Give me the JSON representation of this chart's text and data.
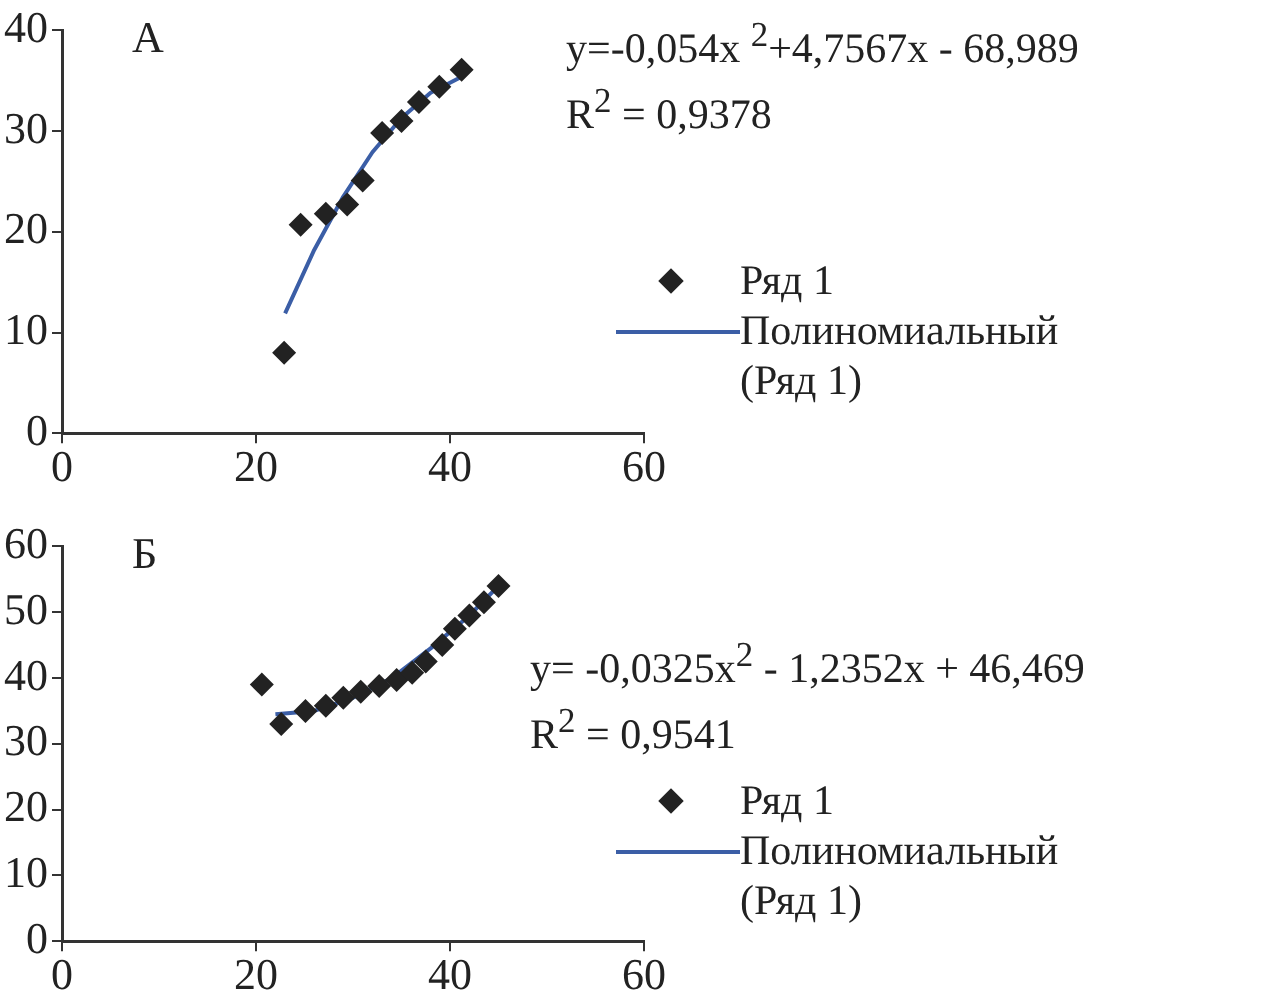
{
  "chart_data": [
    {
      "type": "scatter",
      "title": "А",
      "xlim": [
        0,
        60
      ],
      "xticks": [
        0,
        20,
        40,
        60
      ],
      "ylim": [
        0,
        40
      ],
      "yticks": [
        0,
        10,
        20,
        30,
        40
      ],
      "grid": false,
      "legend": "right",
      "annotations": [
        "y=-0,054x $^{2}$+4,7567x - 68,989",
        "R$^{2}$ = 0,9378"
      ],
      "series": [
        {
          "name": "Ряд 1",
          "type": "scatter",
          "marker": "diamond",
          "color": "#222222",
          "x": [
            22.9,
            24.6,
            27.2,
            29.4,
            31.0,
            33.0,
            35.0,
            36.8,
            38.9,
            41.2
          ],
          "values": [
            8,
            20.7,
            21.8,
            22.7,
            25.1,
            29.8,
            31,
            32.9,
            34.4,
            36.1
          ]
        },
        {
          "name": "Полиномиальный (Ряд 1)",
          "type": "line",
          "marker": "none",
          "color": "#3b5ea6",
          "x": [
            23,
            26,
            29,
            32,
            35,
            38,
            41
          ],
          "values": [
            11.9,
            18.2,
            23.5,
            27.9,
            31.3,
            33.8,
            35.3
          ]
        }
      ]
    },
    {
      "type": "scatter",
      "title": "Б",
      "xlim": [
        0,
        60
      ],
      "xticks": [
        0,
        20,
        40,
        60
      ],
      "ylim": [
        0,
        60
      ],
      "yticks": [
        0,
        10,
        20,
        30,
        40,
        50,
        60
      ],
      "grid": false,
      "legend": "right",
      "annotations": [
        "y= -0,0325x$^{2}$ - 1,2352x + 46,469",
        "R$^{2}$ = 0,9541"
      ],
      "series": [
        {
          "name": "Ряд 1",
          "type": "scatter",
          "marker": "diamond",
          "color": "#222222",
          "x": [
            20.6,
            22.6,
            25.1,
            27.2,
            29.0,
            30.8,
            32.7,
            34.5,
            36.1,
            37.5,
            39.2,
            40.5,
            42,
            43.5,
            45
          ],
          "values": [
            39,
            33,
            35,
            35.8,
            37,
            37.9,
            38.8,
            39.7,
            40.8,
            42.5,
            45,
            47.5,
            49.5,
            51.5,
            54
          ]
        },
        {
          "name": "Полиномиальный (Ряд 1)",
          "type": "line",
          "marker": "none",
          "color": "#3b5ea6",
          "x": [
            22,
            26,
            30,
            34,
            38,
            42,
            45
          ],
          "values": [
            34.5,
            35,
            37,
            40,
            44.5,
            49.5,
            54
          ]
        }
      ]
    }
  ]
}
